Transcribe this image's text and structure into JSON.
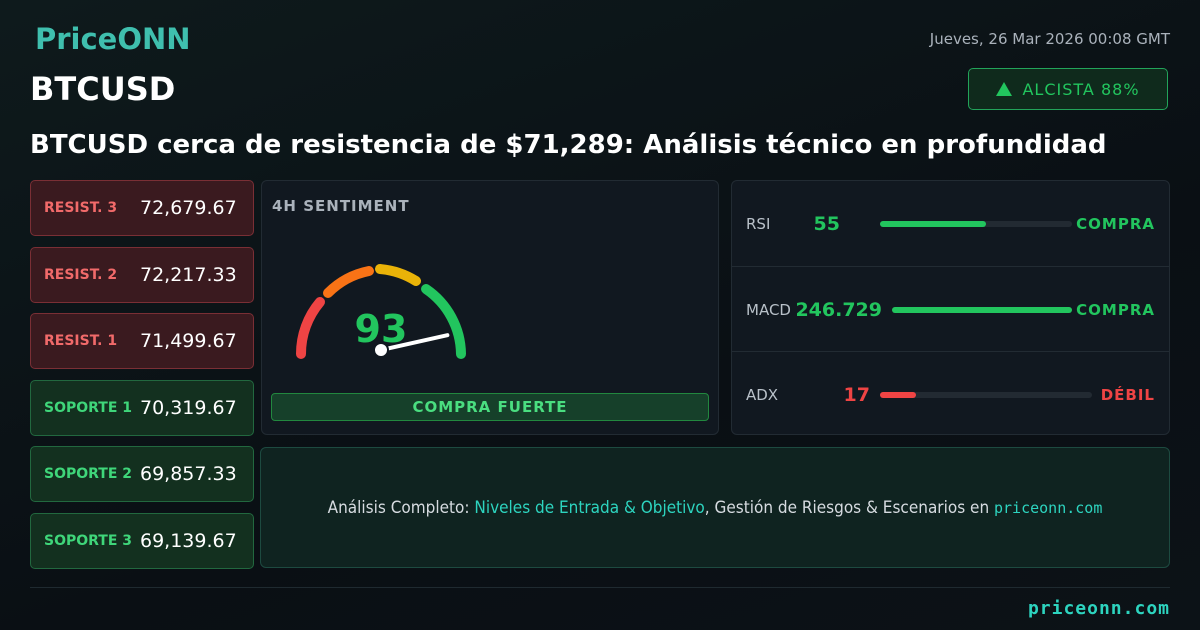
{
  "header": {
    "logo": "PriceONN",
    "date": "Jueves, 26 Mar 2026 00:08 GMT",
    "ticker": "BTCUSD",
    "badge": "ALCISTA 88%",
    "headline": "BTCUSD cerca de resistencia de $71,289: Análisis técnico en profundidad"
  },
  "levels": [
    {
      "label": "RESIST. 3",
      "value": "72,679.67",
      "kind": "resist"
    },
    {
      "label": "RESIST. 2",
      "value": "72,217.33",
      "kind": "resist"
    },
    {
      "label": "RESIST. 1",
      "value": "71,499.67",
      "kind": "resist"
    },
    {
      "label": "SOPORTE 1",
      "value": "70,319.67",
      "kind": "support"
    },
    {
      "label": "SOPORTE 2",
      "value": "69,857.33",
      "kind": "support"
    },
    {
      "label": "SOPORTE 3",
      "value": "69,139.67",
      "kind": "support"
    }
  ],
  "sentiment": {
    "title": "4H SENTIMENT",
    "score": 93,
    "signal": "COMPRA FUERTE"
  },
  "indicators": [
    {
      "name": "RSI",
      "value": 55,
      "signal": "COMPRA",
      "color": "#22c55e"
    },
    {
      "name": "MACD",
      "value": 246.729,
      "signal": "COMPRA",
      "color": "#22c55e"
    },
    {
      "name": "ADX",
      "value": 17,
      "signal": "DÉBIL",
      "color": "#ef4444"
    }
  ],
  "promo": {
    "lead": "Análisis Completo:",
    "highlight": "Niveles de Entrada & Objetivo",
    "rest": ", Gestión de Riesgos & Escenarios en",
    "site": "priceonn.com"
  },
  "footer": {
    "site": "priceonn.com"
  }
}
